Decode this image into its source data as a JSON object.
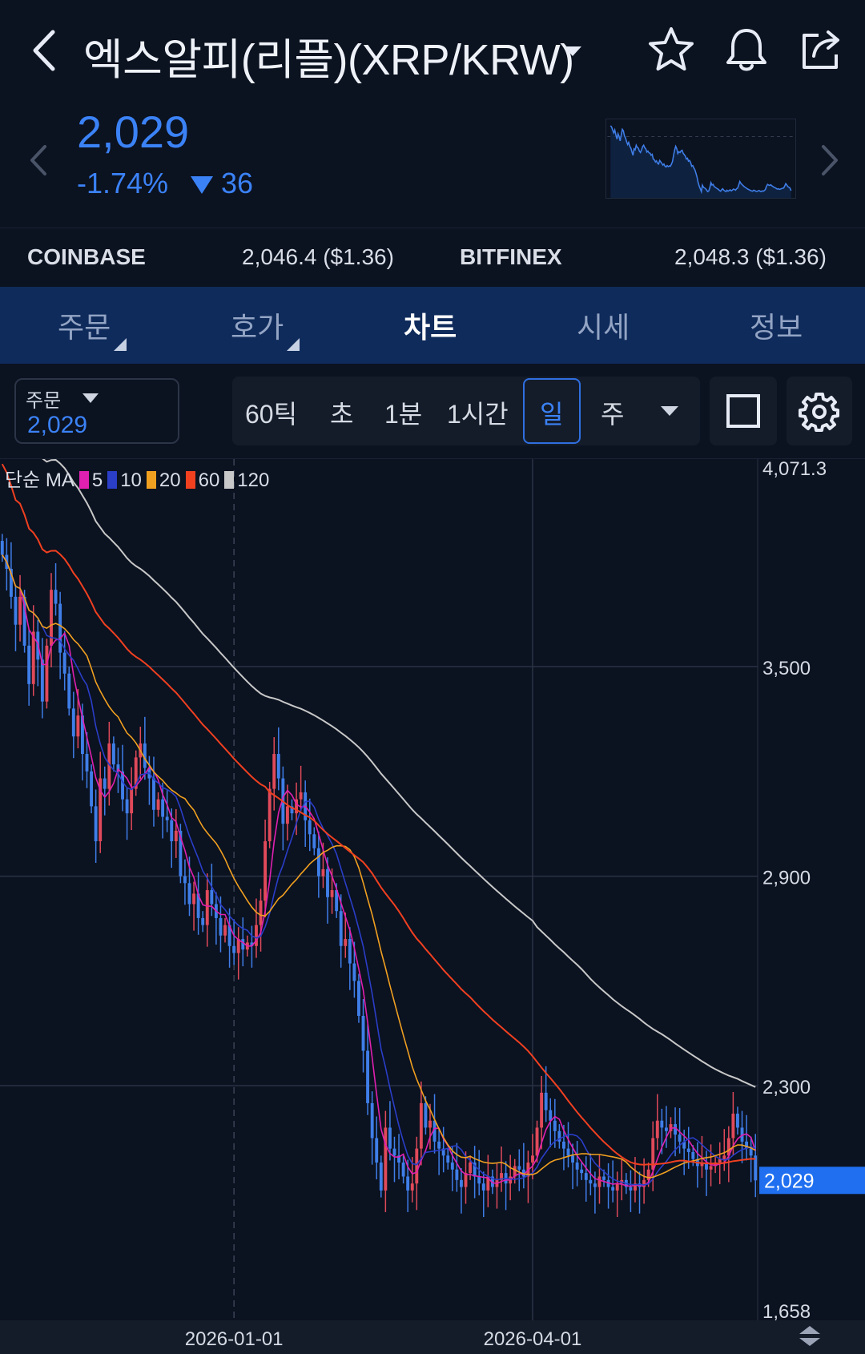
{
  "header": {
    "title": "엑스알피(리플)(XRP/KRW)",
    "price": "2,029",
    "change_pct": "-1.74%",
    "change_abs": "36"
  },
  "exchanges": [
    {
      "name": "COINBASE",
      "value": "2,046.4 ($1.36)"
    },
    {
      "name": "BITFINEX",
      "value": "2,048.3 ($1.36)"
    }
  ],
  "tabs": [
    {
      "label": "주문"
    },
    {
      "label": "호가"
    },
    {
      "label": "차트"
    },
    {
      "label": "시세"
    },
    {
      "label": "정보"
    }
  ],
  "toolbar": {
    "order_label": "주문",
    "order_value": "2,029",
    "intervals": [
      "60틱",
      "초",
      "1분",
      "1시간",
      "일",
      "주"
    ],
    "active_interval": "일"
  },
  "legend": {
    "prefix": "단순 MA",
    "items": [
      {
        "period": "5",
        "color": "#e020b0"
      },
      {
        "period": "10",
        "color": "#2a3ec8"
      },
      {
        "period": "20",
        "color": "#f0a020"
      },
      {
        "period": "60",
        "color": "#f04020"
      },
      {
        "period": "120",
        "color": "#c8c8c8"
      }
    ]
  },
  "colors": {
    "up": "#e04a5a",
    "down": "#3f7ee8",
    "accent": "#3b82f6",
    "current_bg": "#1f6ff0"
  },
  "icons": [
    "back-icon",
    "dropdown-icon",
    "star-icon",
    "bell-icon",
    "share-icon",
    "chevron-left-icon",
    "chevron-right-icon",
    "square-icon",
    "gear-icon"
  ],
  "chart_data": {
    "type": "candlestick",
    "x_axis_labels": [
      "2026-01-01",
      "2026-04-01"
    ],
    "y_ticks": [
      "4,071.3",
      "3,500",
      "2,900",
      "2,300",
      "1,658"
    ],
    "y_tick_values": [
      4071.3,
      3500,
      2900,
      2300,
      1658
    ],
    "ylim": [
      1658,
      4071.3
    ],
    "current_price_label": "2,029",
    "current_price": 2029,
    "grid": true,
    "closes": [
      3820,
      3780,
      3700,
      3620,
      3700,
      3560,
      3450,
      3600,
      3520,
      3400,
      3560,
      3720,
      3680,
      3540,
      3480,
      3380,
      3300,
      3360,
      3250,
      3200,
      3100,
      3000,
      3180,
      3150,
      3280,
      3220,
      3200,
      3120,
      3080,
      3150,
      3240,
      3280,
      3210,
      3180,
      3090,
      3120,
      3070,
      3060,
      3000,
      3030,
      2900,
      2880,
      2820,
      2850,
      2780,
      2760,
      2860,
      2820,
      2780,
      2730,
      2760,
      2700,
      2680,
      2720,
      2690,
      2710,
      2700,
      2760,
      2830,
      3000,
      3150,
      3250,
      3180,
      3050,
      3100,
      3080,
      3120,
      3140,
      3060,
      3020,
      2980,
      2900,
      2920,
      2840,
      2860,
      2800,
      2700,
      2720,
      2650,
      2600,
      2500,
      2400,
      2250,
      2150,
      2080,
      2000,
      2180,
      2120,
      2100,
      2080,
      2040,
      2000,
      2020,
      2120,
      2250,
      2180,
      2200,
      2140,
      2120,
      2100,
      2080,
      2060,
      2030,
      2010,
      2050,
      2080,
      2040,
      2020,
      2000,
      2040,
      2010,
      2030,
      2050,
      2020,
      2040,
      2070,
      2060,
      2040,
      2080,
      2100,
      2180,
      2280,
      2230,
      2200,
      2170,
      2140,
      2120,
      2100,
      2080,
      2060,
      2050,
      2030,
      2020,
      2010,
      2040,
      2030,
      2010,
      2000,
      2020,
      2030,
      2010,
      2000,
      2020,
      2010,
      2030,
      2060,
      2150,
      2200,
      2180,
      2170,
      2190,
      2160,
      2140,
      2120,
      2110,
      2090,
      2070,
      2080,
      2060,
      2070,
      2080,
      2090,
      2100,
      2150,
      2220,
      2180,
      2140,
      2120,
      2100,
      2029
    ],
    "series": [
      {
        "name": "5"
      },
      {
        "name": "10"
      },
      {
        "name": "20"
      },
      {
        "name": "60"
      },
      {
        "name": "120"
      }
    ]
  }
}
